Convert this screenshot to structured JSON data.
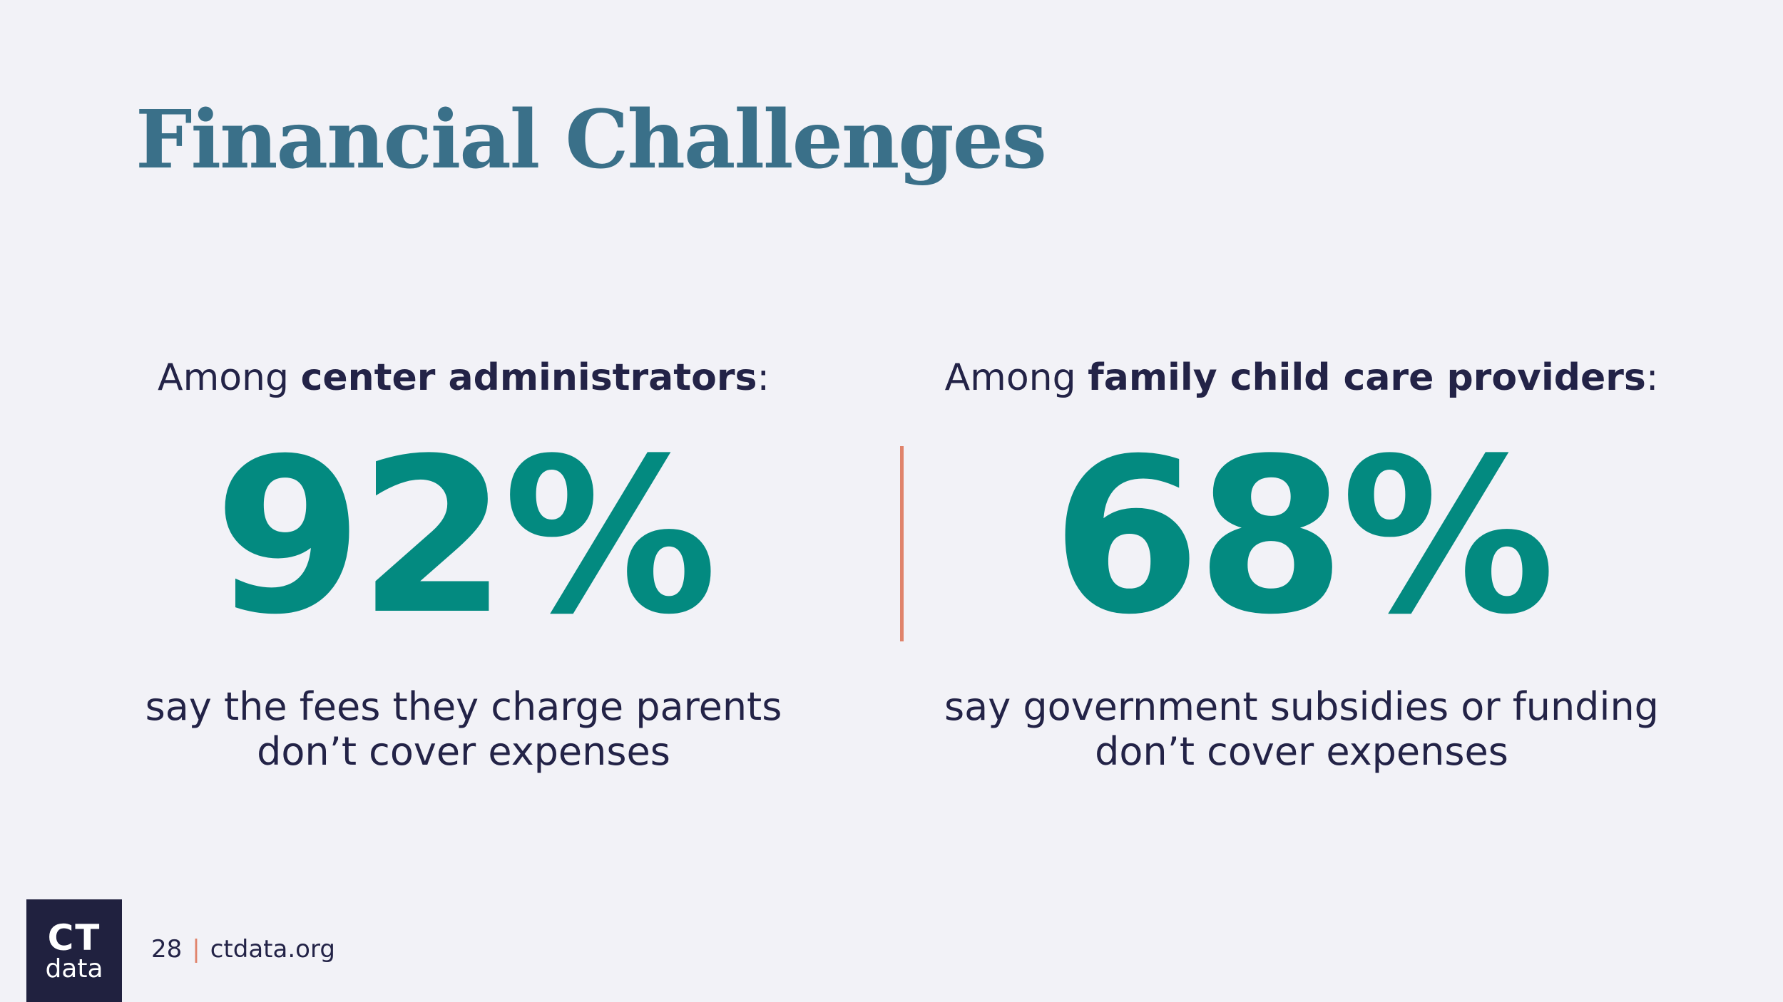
{
  "slide": {
    "title": "Financial Challenges",
    "page_number": "28",
    "separator": "|",
    "website": "ctdata.org"
  },
  "logo": {
    "line1": "CT",
    "line2": "data"
  },
  "stats": [
    {
      "lead_prefix": "Among ",
      "lead_group": "center administrators",
      "lead_suffix": ":",
      "value": "92%",
      "description_line1": "say the fees they charge parents",
      "description_line2": "don’t cover expenses"
    },
    {
      "lead_prefix": "Among ",
      "lead_group": "family child care providers",
      "lead_suffix": ":",
      "value": "68%",
      "description_line1": "say government subsidies or funding",
      "description_line2": "don’t cover expenses"
    }
  ],
  "colors": {
    "title": "#3a7089",
    "stat": "#038a80",
    "divider": "#e0836b",
    "text": "#232347",
    "logo_background": "#20213f",
    "background": "#f2f2f7"
  }
}
